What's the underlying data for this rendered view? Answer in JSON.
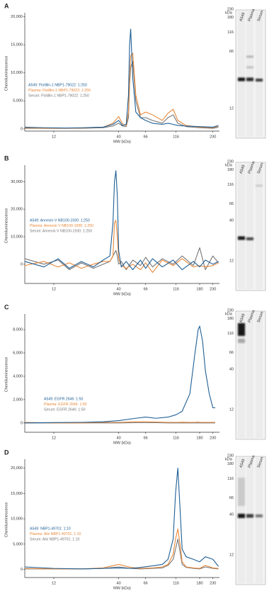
{
  "chart_data": [
    {
      "type": "line",
      "panel": "A",
      "ylabel": "Chemiluminescence",
      "xlabel": "MW (kDa)",
      "xscale": "log",
      "xlim": [
        7,
        260
      ],
      "xticks": [
        12,
        40,
        66,
        116,
        230
      ],
      "ylim": [
        -400,
        20200
      ],
      "yticks": [
        0,
        {
          "value": 5000,
          "label": "5,000"
        },
        {
          "value": 10000,
          "label": "10,000"
        },
        {
          "value": 15000,
          "label": "15,000"
        },
        {
          "value": 20000,
          "label": "20,000"
        }
      ],
      "x": [
        7,
        10,
        15,
        20,
        30,
        36,
        40,
        43,
        46,
        48,
        49,
        50,
        52,
        55,
        60,
        66,
        75,
        90,
        100,
        110,
        120,
        140,
        180,
        230,
        255
      ],
      "series": [
        {
          "name": "A549: Flotillin-1 NBP1-79022: 1:250",
          "color": "#1f5f95",
          "values": [
            300,
            200,
            150,
            200,
            300,
            800,
            1500,
            600,
            800,
            6000,
            15000,
            17800,
            9000,
            3000,
            2000,
            1500,
            1000,
            800,
            1000,
            800,
            600,
            500,
            400,
            300,
            600
          ]
        },
        {
          "name": "Plasma: Flotillin-1 NBP1-79022: 1:250",
          "color": "#e8893b",
          "values": [
            200,
            100,
            100,
            150,
            300,
            1000,
            2200,
            900,
            600,
            3000,
            9000,
            13000,
            13500,
            6000,
            2500,
            3000,
            2500,
            1500,
            2800,
            3500,
            1500,
            600,
            300,
            200,
            500
          ]
        },
        {
          "name": "Serum: Flotillin-1 NBP1-79022: 1:250",
          "color": "#777777",
          "values": [
            100,
            100,
            100,
            100,
            200,
            500,
            1000,
            500,
            400,
            2000,
            8000,
            11000,
            12000,
            5000,
            2000,
            2000,
            1500,
            1000,
            2000,
            2500,
            1000,
            400,
            200,
            100,
            300
          ]
        }
      ],
      "blot": {
        "unit": "kDa",
        "markers": [
          230,
          180,
          116,
          66,
          12
        ],
        "lanes": [
          "A549",
          "Plasma",
          "Serum"
        ]
      }
    },
    {
      "type": "line",
      "panel": "B",
      "ylabel": "Chemiluminescence",
      "xlabel": "MW (kDa)",
      "xscale": "log",
      "xlim": [
        7,
        260
      ],
      "xticks": [
        12,
        40,
        66,
        116,
        180,
        230
      ],
      "ylim": [
        -7000,
        35000
      ],
      "yticks": [
        0,
        {
          "value": 10000,
          "label": "10,000"
        },
        {
          "value": 20000,
          "label": "20,000"
        },
        {
          "value": 30000,
          "label": "30,000"
        }
      ],
      "x": [
        7,
        10,
        13,
        16,
        20,
        25,
        30,
        34,
        36,
        37,
        38,
        39,
        40,
        42,
        46,
        52,
        60,
        66,
        75,
        90,
        110,
        130,
        160,
        180,
        200,
        230,
        255
      ],
      "series": [
        {
          "name": "A549: Annexin V NB100-1930: 1:250",
          "color": "#1f5f95",
          "values": [
            1000,
            -1000,
            2000,
            -1500,
            1000,
            -1000,
            1500,
            3000,
            15000,
            30000,
            34000,
            25000,
            5000,
            -1000,
            1000,
            -2000,
            1500,
            -1500,
            2000,
            -1000,
            1500,
            -2000,
            1000,
            -1000,
            1500,
            0,
            1000
          ]
        },
        {
          "name": "Plasma: Annexin V NB100-1930: 1:250",
          "color": "#e8893b",
          "values": [
            -500,
            1000,
            -1000,
            500,
            -1500,
            0,
            1000,
            1000,
            3000,
            15000,
            16000,
            10000,
            2000,
            -500,
            -1500,
            0,
            -2000,
            500,
            -3000,
            1500,
            -500,
            2000,
            -1000,
            -500,
            -1000,
            -500,
            500
          ]
        },
        {
          "name": "Serum: Annexin V NB100-1930: 1:250",
          "color": "#777777",
          "values": [
            2000,
            0,
            1500,
            -2000,
            500,
            -1500,
            0,
            1000,
            3000,
            4000,
            5000,
            3000,
            0,
            1000,
            -2000,
            1500,
            -500,
            2500,
            -1000,
            2000,
            0,
            3000,
            -500,
            6000,
            -2000,
            3000,
            500
          ]
        }
      ],
      "blot": {
        "unit": "kDa",
        "markers": [
          230,
          180,
          116,
          66,
          40,
          12
        ],
        "lanes": [
          "A549",
          "Plasma",
          "Serum"
        ]
      }
    },
    {
      "type": "line",
      "panel": "C",
      "ylabel": "Chemiluminescence",
      "xlabel": "MW (kDa)",
      "xscale": "log",
      "xlim": [
        7,
        260
      ],
      "xticks": [
        12,
        40,
        66,
        116,
        180,
        230
      ],
      "ylim": [
        -800,
        9100
      ],
      "yticks": [
        0,
        {
          "value": 2000,
          "label": "2,000"
        },
        {
          "value": 4000,
          "label": "4,000"
        },
        {
          "value": 6000,
          "label": "6,000"
        },
        {
          "value": 8000,
          "label": "8,000"
        }
      ],
      "x": [
        7,
        12,
        20,
        30,
        40,
        55,
        66,
        80,
        100,
        116,
        130,
        150,
        165,
        175,
        180,
        190,
        200,
        215,
        230,
        240
      ],
      "series": [
        {
          "name": "A549: EGFR 2646: 1:50",
          "color": "#1f5f95",
          "values": [
            0,
            30,
            50,
            100,
            200,
            400,
            500,
            400,
            500,
            700,
            1000,
            2500,
            6000,
            8000,
            8300,
            7000,
            4500,
            2500,
            1300,
            1300
          ]
        },
        {
          "name": "Plasma: EGFR 2646: 1:50",
          "color": "#e8893b",
          "values": [
            50,
            0,
            0,
            50,
            50,
            100,
            100,
            80,
            50,
            50,
            60,
            50,
            50,
            80,
            50,
            50,
            50,
            50,
            50,
            50
          ]
        },
        {
          "name": "Serum: EGFR 2646: 1:50",
          "color": "#777777",
          "values": [
            0,
            0,
            0,
            0,
            0,
            20,
            20,
            20,
            0,
            0,
            0,
            0,
            0,
            0,
            0,
            0,
            0,
            0,
            0,
            0
          ]
        }
      ],
      "blot": {
        "unit": "kDa",
        "markers": [
          230,
          180,
          116,
          66,
          40,
          12
        ],
        "lanes": [
          "A549",
          "Plasma",
          "Serum"
        ]
      }
    },
    {
      "type": "line",
      "panel": "D",
      "ylabel": "Chemiluminescence",
      "xlabel": "MW (kDa)",
      "xscale": "log",
      "xlim": [
        7,
        260
      ],
      "xticks": [
        12,
        40,
        66,
        116,
        180,
        230
      ],
      "ylim": [
        -1600,
        21200
      ],
      "yticks": [
        0,
        {
          "value": 5000,
          "label": "5,000"
        },
        {
          "value": 10000,
          "label": "10,000"
        },
        {
          "value": 15000,
          "label": "15,000"
        },
        {
          "value": 20000,
          "label": "20,000"
        }
      ],
      "x": [
        7,
        12,
        20,
        30,
        40,
        50,
        60,
        75,
        90,
        100,
        110,
        115,
        120,
        125,
        130,
        140,
        160,
        180,
        200,
        230,
        255
      ],
      "series": [
        {
          "name": "A549: NBP1-49701: 1:10",
          "color": "#1f5f95",
          "values": [
            500,
            200,
            100,
            200,
            300,
            200,
            400,
            700,
            1000,
            2000,
            6000,
            15000,
            20000,
            12000,
            4000,
            2500,
            2000,
            1500,
            2500,
            2000,
            600
          ]
        },
        {
          "name": "Plasma: Alix NBP1-49701: 1:10",
          "color": "#e8893b",
          "values": [
            200,
            100,
            100,
            300,
            1000,
            400,
            200,
            300,
            500,
            1000,
            3000,
            6000,
            8000,
            5000,
            1500,
            500,
            300,
            200,
            800,
            300,
            200
          ]
        },
        {
          "name": "Serum: Alix NBP1-49701: 1:10",
          "color": "#777777",
          "values": [
            100,
            100,
            100,
            200,
            500,
            200,
            100,
            200,
            300,
            800,
            2000,
            4000,
            6000,
            3500,
            1000,
            400,
            200,
            100,
            500,
            200,
            100
          ]
        }
      ],
      "blot": {
        "unit": "kDa",
        "markers": [
          230,
          180,
          116,
          66,
          40,
          12
        ],
        "lanes": [
          "A549",
          "Plasma",
          "Serum"
        ]
      }
    }
  ]
}
